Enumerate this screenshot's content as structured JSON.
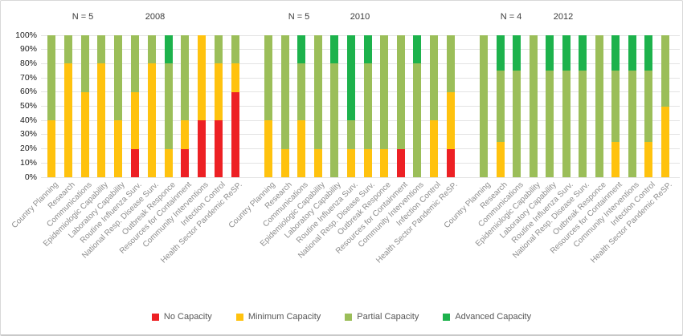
{
  "chart_data": {
    "type": "bar",
    "stacked": true,
    "orientation": "vertical",
    "unit": "percent",
    "ylim": [
      0,
      100
    ],
    "y_ticks": [
      "0%",
      "10%",
      "20%",
      "30%",
      "40%",
      "50%",
      "60%",
      "70%",
      "80%",
      "90%",
      "100%"
    ],
    "grid": "horizontal",
    "legend_position": "bottom",
    "categories": [
      "Country Planning",
      "Research",
      "Communications",
      "Epidemiologic Capability",
      "Laboratory Capability",
      "Routine Influenza Surv.",
      "National Resp. Disease Surv.",
      "Outbreak Responce",
      "Resources for Containment",
      "Community Interventions",
      "Infection Control",
      "Health Sector Pandemic ReSP."
    ],
    "series_names": [
      "No Capacity",
      "Minimum Capacity",
      "Partial Capacity",
      "Advanced Capacity"
    ],
    "legend": [
      {
        "label": "No Capacity",
        "color": "#ED2024"
      },
      {
        "label": "Minimum Capacity",
        "color": "#FFC20E"
      },
      {
        "label": "Partial Capacity",
        "color": "#9BBE59"
      },
      {
        "label": "Advanced Capacity",
        "color": "#1DB24C"
      }
    ],
    "groups": [
      {
        "n_label": "N = 5",
        "year": "2008",
        "bars": [
          [
            0,
            40,
            60,
            0
          ],
          [
            0,
            80,
            20,
            0
          ],
          [
            0,
            60,
            40,
            0
          ],
          [
            0,
            80,
            20,
            0
          ],
          [
            0,
            40,
            60,
            0
          ],
          [
            20,
            40,
            40,
            0
          ],
          [
            0,
            80,
            20,
            0
          ],
          [
            0,
            20,
            60,
            20
          ],
          [
            20,
            20,
            60,
            0
          ],
          [
            40,
            60,
            0,
            0
          ],
          [
            40,
            40,
            20,
            0
          ],
          [
            60,
            20,
            20,
            0
          ]
        ]
      },
      {
        "n_label": "N = 5",
        "year": "2010",
        "bars": [
          [
            0,
            40,
            60,
            0
          ],
          [
            0,
            20,
            80,
            0
          ],
          [
            0,
            40,
            40,
            20
          ],
          [
            0,
            20,
            80,
            0
          ],
          [
            0,
            0,
            80,
            20
          ],
          [
            0,
            20,
            20,
            60
          ],
          [
            0,
            20,
            60,
            20
          ],
          [
            0,
            20,
            80,
            0
          ],
          [
            20,
            0,
            80,
            0
          ],
          [
            0,
            0,
            80,
            20
          ],
          [
            0,
            40,
            60,
            0
          ],
          [
            20,
            40,
            40,
            0
          ]
        ]
      },
      {
        "n_label": "N = 4",
        "year": "2012",
        "bars": [
          [
            0,
            0,
            100,
            0
          ],
          [
            0,
            25,
            50,
            25
          ],
          [
            0,
            0,
            75,
            25
          ],
          [
            0,
            0,
            100,
            0
          ],
          [
            0,
            0,
            75,
            25
          ],
          [
            0,
            0,
            75,
            25
          ],
          [
            0,
            0,
            75,
            25
          ],
          [
            0,
            0,
            100,
            0
          ],
          [
            0,
            25,
            50,
            25
          ],
          [
            0,
            0,
            75,
            25
          ],
          [
            0,
            25,
            50,
            25
          ],
          [
            0,
            50,
            50,
            0
          ]
        ]
      }
    ]
  }
}
